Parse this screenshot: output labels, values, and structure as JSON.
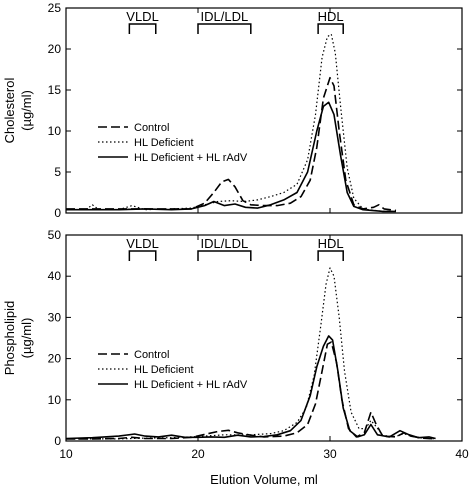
{
  "chart_data": [
    {
      "type": "line",
      "xlabel": "",
      "ylabel": "Cholesterol",
      "ylabel_unit": "(µg/ml)",
      "xlim": [
        10,
        40
      ],
      "ylim": [
        0,
        25
      ],
      "xticks": [
        10,
        20,
        30,
        40
      ],
      "yticks": [
        0,
        5,
        10,
        15,
        20,
        25
      ],
      "grid": false,
      "legend_position": "center-left",
      "bands": [
        {
          "label": "VLDL",
          "from": 14.8,
          "to": 16.8
        },
        {
          "label": "IDL/LDL",
          "from": 20,
          "to": 24
        },
        {
          "label": "HDL",
          "from": 29.1,
          "to": 31
        }
      ],
      "series": [
        {
          "name": "Control",
          "style": "dashed",
          "points": [
            [
              10,
              0.5
            ],
            [
              12,
              0.5
            ],
            [
              14,
              0.5
            ],
            [
              16,
              0.5
            ],
            [
              18,
              0.5
            ],
            [
              19.5,
              0.5
            ],
            [
              20.5,
              1.2
            ],
            [
              21.2,
              2.5
            ],
            [
              21.8,
              3.8
            ],
            [
              22.3,
              4.1
            ],
            [
              22.8,
              3.2
            ],
            [
              23.4,
              1.5
            ],
            [
              24,
              1.0
            ],
            [
              25,
              0.9
            ],
            [
              26,
              0.9
            ],
            [
              27,
              1.2
            ],
            [
              27.8,
              2.0
            ],
            [
              28.5,
              4.0
            ],
            [
              29,
              8.0
            ],
            [
              29.5,
              14.0
            ],
            [
              30,
              16.5
            ],
            [
              30.3,
              15.5
            ],
            [
              30.7,
              10.0
            ],
            [
              31.2,
              4.0
            ],
            [
              31.8,
              1.0
            ],
            [
              32.5,
              0.5
            ],
            [
              33.3,
              0.7
            ],
            [
              33.7,
              1.0
            ],
            [
              34.1,
              0.5
            ],
            [
              35,
              0.3
            ]
          ]
        },
        {
          "name": "HL Deficient",
          "style": "dotted",
          "points": [
            [
              10,
              0.4
            ],
            [
              11.5,
              0.4
            ],
            [
              12,
              1.0
            ],
            [
              12.5,
              0.4
            ],
            [
              14,
              0.4
            ],
            [
              15,
              0.9
            ],
            [
              16,
              0.4
            ],
            [
              18,
              0.5
            ],
            [
              19.5,
              0.6
            ],
            [
              20.5,
              1.0
            ],
            [
              21.5,
              1.4
            ],
            [
              22.5,
              1.5
            ],
            [
              23.5,
              1.4
            ],
            [
              24.5,
              1.6
            ],
            [
              25.5,
              2.0
            ],
            [
              26.5,
              2.5
            ],
            [
              27.5,
              3.5
            ],
            [
              28.3,
              6.5
            ],
            [
              28.9,
              12.0
            ],
            [
              29.4,
              19.0
            ],
            [
              29.8,
              21.5
            ],
            [
              30.1,
              21.8
            ],
            [
              30.4,
              19.5
            ],
            [
              30.8,
              13.0
            ],
            [
              31.3,
              5.5
            ],
            [
              31.8,
              1.8
            ],
            [
              32.5,
              0.5
            ],
            [
              34,
              0.2
            ],
            [
              35,
              0.2
            ]
          ]
        },
        {
          "name": "HL Deficient + HL rAdV",
          "style": "solid",
          "points": [
            [
              10,
              0.4
            ],
            [
              14,
              0.4
            ],
            [
              16,
              0.5
            ],
            [
              18,
              0.4
            ],
            [
              19.5,
              0.5
            ],
            [
              20.5,
              0.9
            ],
            [
              21.2,
              1.4
            ],
            [
              22,
              0.9
            ],
            [
              22.8,
              1.1
            ],
            [
              23.6,
              0.7
            ],
            [
              24.5,
              0.6
            ],
            [
              25.5,
              1.0
            ],
            [
              26.5,
              1.6
            ],
            [
              27.5,
              2.5
            ],
            [
              28.3,
              5.0
            ],
            [
              29,
              10.0
            ],
            [
              29.5,
              13.0
            ],
            [
              29.9,
              13.5
            ],
            [
              30.3,
              12.0
            ],
            [
              30.8,
              7.0
            ],
            [
              31.3,
              2.5
            ],
            [
              31.8,
              0.8
            ],
            [
              32.5,
              0.4
            ],
            [
              34,
              0.2
            ],
            [
              35,
              0.2
            ]
          ]
        }
      ]
    },
    {
      "type": "line",
      "xlabel": "Elution Volume, ml",
      "ylabel": "Phospholipid",
      "ylabel_unit": "(µg/ml)",
      "xlim": [
        10,
        40
      ],
      "ylim": [
        0,
        50
      ],
      "xticks": [
        10,
        20,
        30,
        40
      ],
      "yticks": [
        0,
        10,
        20,
        30,
        40,
        50
      ],
      "grid": false,
      "legend_position": "center-left",
      "bands": [
        {
          "label": "VLDL",
          "from": 14.8,
          "to": 16.8
        },
        {
          "label": "IDL/LDL",
          "from": 20,
          "to": 24
        },
        {
          "label": "HDL",
          "from": 29.1,
          "to": 31
        }
      ],
      "series": [
        {
          "name": "Control",
          "style": "dashed",
          "points": [
            [
              10,
              0.5
            ],
            [
              12,
              0.5
            ],
            [
              14,
              0.6
            ],
            [
              15,
              0.9
            ],
            [
              16,
              0.6
            ],
            [
              18,
              0.6
            ],
            [
              19.5,
              0.9
            ],
            [
              20.5,
              1.6
            ],
            [
              21.5,
              2.3
            ],
            [
              22.3,
              2.6
            ],
            [
              23,
              2.0
            ],
            [
              24,
              1.4
            ],
            [
              25,
              1.0
            ],
            [
              26.5,
              1.2
            ],
            [
              27.5,
              2.0
            ],
            [
              28.3,
              4.0
            ],
            [
              28.9,
              9.0
            ],
            [
              29.4,
              17.0
            ],
            [
              29.8,
              23.5
            ],
            [
              30.1,
              24.0
            ],
            [
              30.5,
              19.0
            ],
            [
              30.9,
              10.0
            ],
            [
              31.4,
              3.0
            ],
            [
              32,
              1.0
            ],
            [
              32.6,
              2.0
            ],
            [
              33.1,
              7.0
            ],
            [
              33.5,
              4.0
            ],
            [
              34,
              1.2
            ],
            [
              35,
              1.0
            ],
            [
              35.6,
              2.0
            ],
            [
              36.1,
              1.2
            ],
            [
              37,
              0.7
            ],
            [
              38,
              0.5
            ]
          ]
        },
        {
          "name": "HL Deficient",
          "style": "dotted",
          "points": [
            [
              10,
              0.5
            ],
            [
              14,
              0.5
            ],
            [
              16,
              0.7
            ],
            [
              18,
              0.8
            ],
            [
              20,
              1.1
            ],
            [
              22,
              1.5
            ],
            [
              24,
              1.5
            ],
            [
              25.5,
              1.8
            ],
            [
              26.5,
              2.5
            ],
            [
              27.5,
              4.5
            ],
            [
              28.2,
              8.0
            ],
            [
              28.8,
              16.0
            ],
            [
              29.3,
              28.0
            ],
            [
              29.7,
              38.0
            ],
            [
              30,
              42.0
            ],
            [
              30.3,
              40.0
            ],
            [
              30.7,
              30.0
            ],
            [
              31.1,
              17.0
            ],
            [
              31.6,
              7.0
            ],
            [
              32.2,
              3.0
            ],
            [
              32.7,
              3.0
            ],
            [
              33.1,
              5.0
            ],
            [
              33.5,
              3.5
            ],
            [
              34,
              1.3
            ],
            [
              35,
              1.1
            ],
            [
              35.6,
              1.8
            ],
            [
              36.1,
              1.2
            ],
            [
              37,
              0.7
            ],
            [
              38,
              0.5
            ]
          ]
        },
        {
          "name": "HL Deficient + HL rAdV",
          "style": "solid",
          "points": [
            [
              10,
              0.6
            ],
            [
              12,
              0.8
            ],
            [
              14,
              1.2
            ],
            [
              15.2,
              1.7
            ],
            [
              16,
              1.2
            ],
            [
              17,
              1.0
            ],
            [
              18,
              1.4
            ],
            [
              19,
              0.9
            ],
            [
              20,
              0.9
            ],
            [
              21,
              1.0
            ],
            [
              22,
              0.9
            ],
            [
              23,
              1.4
            ],
            [
              24,
              1.0
            ],
            [
              25,
              1.1
            ],
            [
              26,
              1.5
            ],
            [
              27,
              2.5
            ],
            [
              27.8,
              5.0
            ],
            [
              28.5,
              11.0
            ],
            [
              29,
              18.0
            ],
            [
              29.5,
              23.0
            ],
            [
              29.9,
              25.5
            ],
            [
              30.2,
              24.5
            ],
            [
              30.6,
              17.0
            ],
            [
              31,
              8.0
            ],
            [
              31.5,
              2.5
            ],
            [
              32.1,
              1.0
            ],
            [
              32.6,
              1.5
            ],
            [
              33.1,
              4.0
            ],
            [
              33.6,
              1.5
            ],
            [
              34.5,
              1.0
            ],
            [
              35.3,
              2.5
            ],
            [
              36,
              1.5
            ],
            [
              36.7,
              0.8
            ],
            [
              37.5,
              1.0
            ],
            [
              38,
              0.6
            ]
          ]
        }
      ]
    }
  ]
}
